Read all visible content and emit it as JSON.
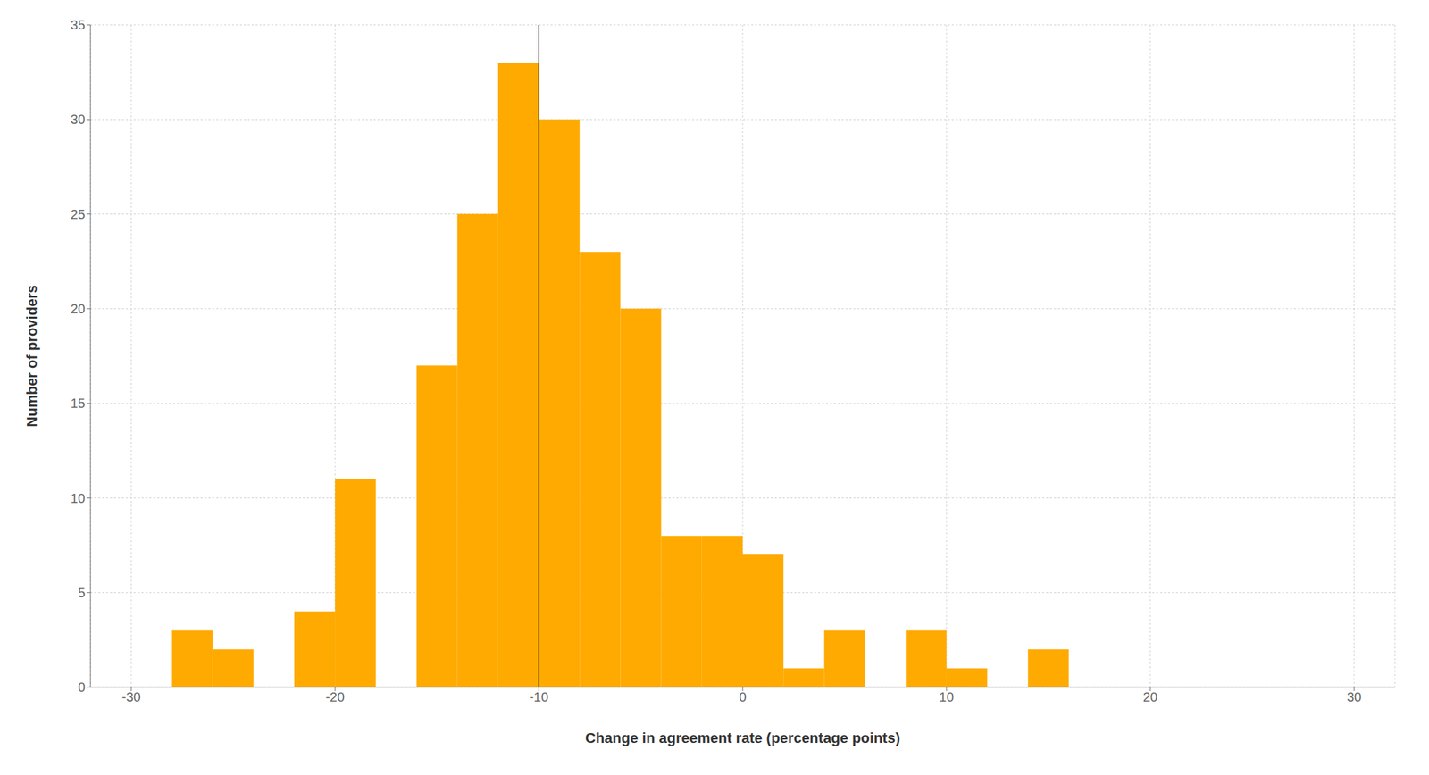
{
  "chart_data": {
    "type": "histogram",
    "xlabel": "Change in agreement rate (percentage points)",
    "ylabel": "Number of providers",
    "bins": [
      -28,
      -26,
      -24,
      -22,
      -20,
      -18,
      -16,
      -14,
      -12,
      -10,
      -8,
      -6,
      -4,
      -2,
      0,
      2,
      4,
      6,
      8,
      10,
      12,
      14,
      16,
      18,
      20
    ],
    "values": [
      3,
      2,
      0,
      4,
      11,
      0,
      17,
      25,
      33,
      30,
      23,
      20,
      8,
      8,
      7,
      1,
      3,
      0,
      3,
      1,
      0,
      2,
      0,
      0
    ],
    "color": "#FFAA00",
    "xlim": [
      -32,
      32
    ],
    "ylim": [
      0,
      35
    ],
    "xticks": [
      -30,
      -20,
      -10,
      0,
      10,
      20,
      30
    ],
    "yticks": [
      0,
      5,
      10,
      15,
      20,
      25,
      30,
      35
    ],
    "grid": true,
    "reference_lines": [
      {
        "x": -10,
        "color": "#000000"
      }
    ]
  }
}
